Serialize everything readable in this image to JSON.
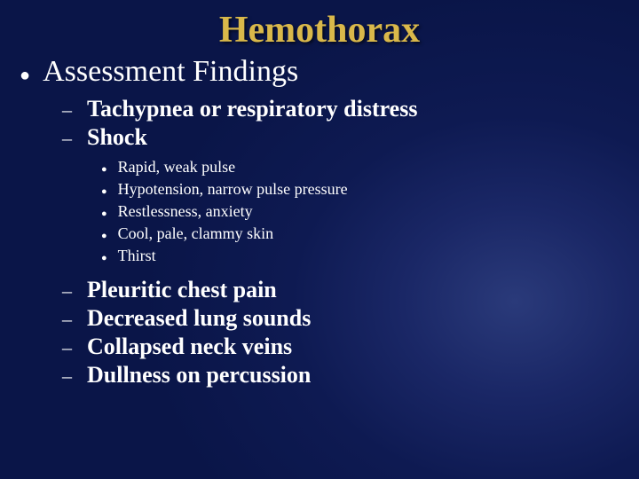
{
  "title": "Hemothorax",
  "heading": "Assessment Findings",
  "colors": {
    "title_color": "#d9b84a",
    "text_color": "#ffffff",
    "background_center": "#2a3a7a",
    "background_outer": "#0a1548"
  },
  "typography": {
    "title_fontsize": 42,
    "heading_fontsize": 34,
    "level2_fontsize": 26,
    "level3_fontsize": 18,
    "font_family": "Times New Roman"
  },
  "level2_items_top": [
    "Tachypnea or respiratory distress",
    "Shock"
  ],
  "level3_items": [
    "Rapid, weak pulse",
    "Hypotension, narrow pulse pressure",
    "Restlessness, anxiety",
    "Cool, pale, clammy skin",
    "Thirst"
  ],
  "level2_items_bottom": [
    "Pleuritic chest pain",
    "Decreased lung sounds",
    "Collapsed neck veins",
    "Dullness on percussion"
  ],
  "bullets": {
    "level1": "●",
    "level2": "–",
    "level3": "●"
  }
}
